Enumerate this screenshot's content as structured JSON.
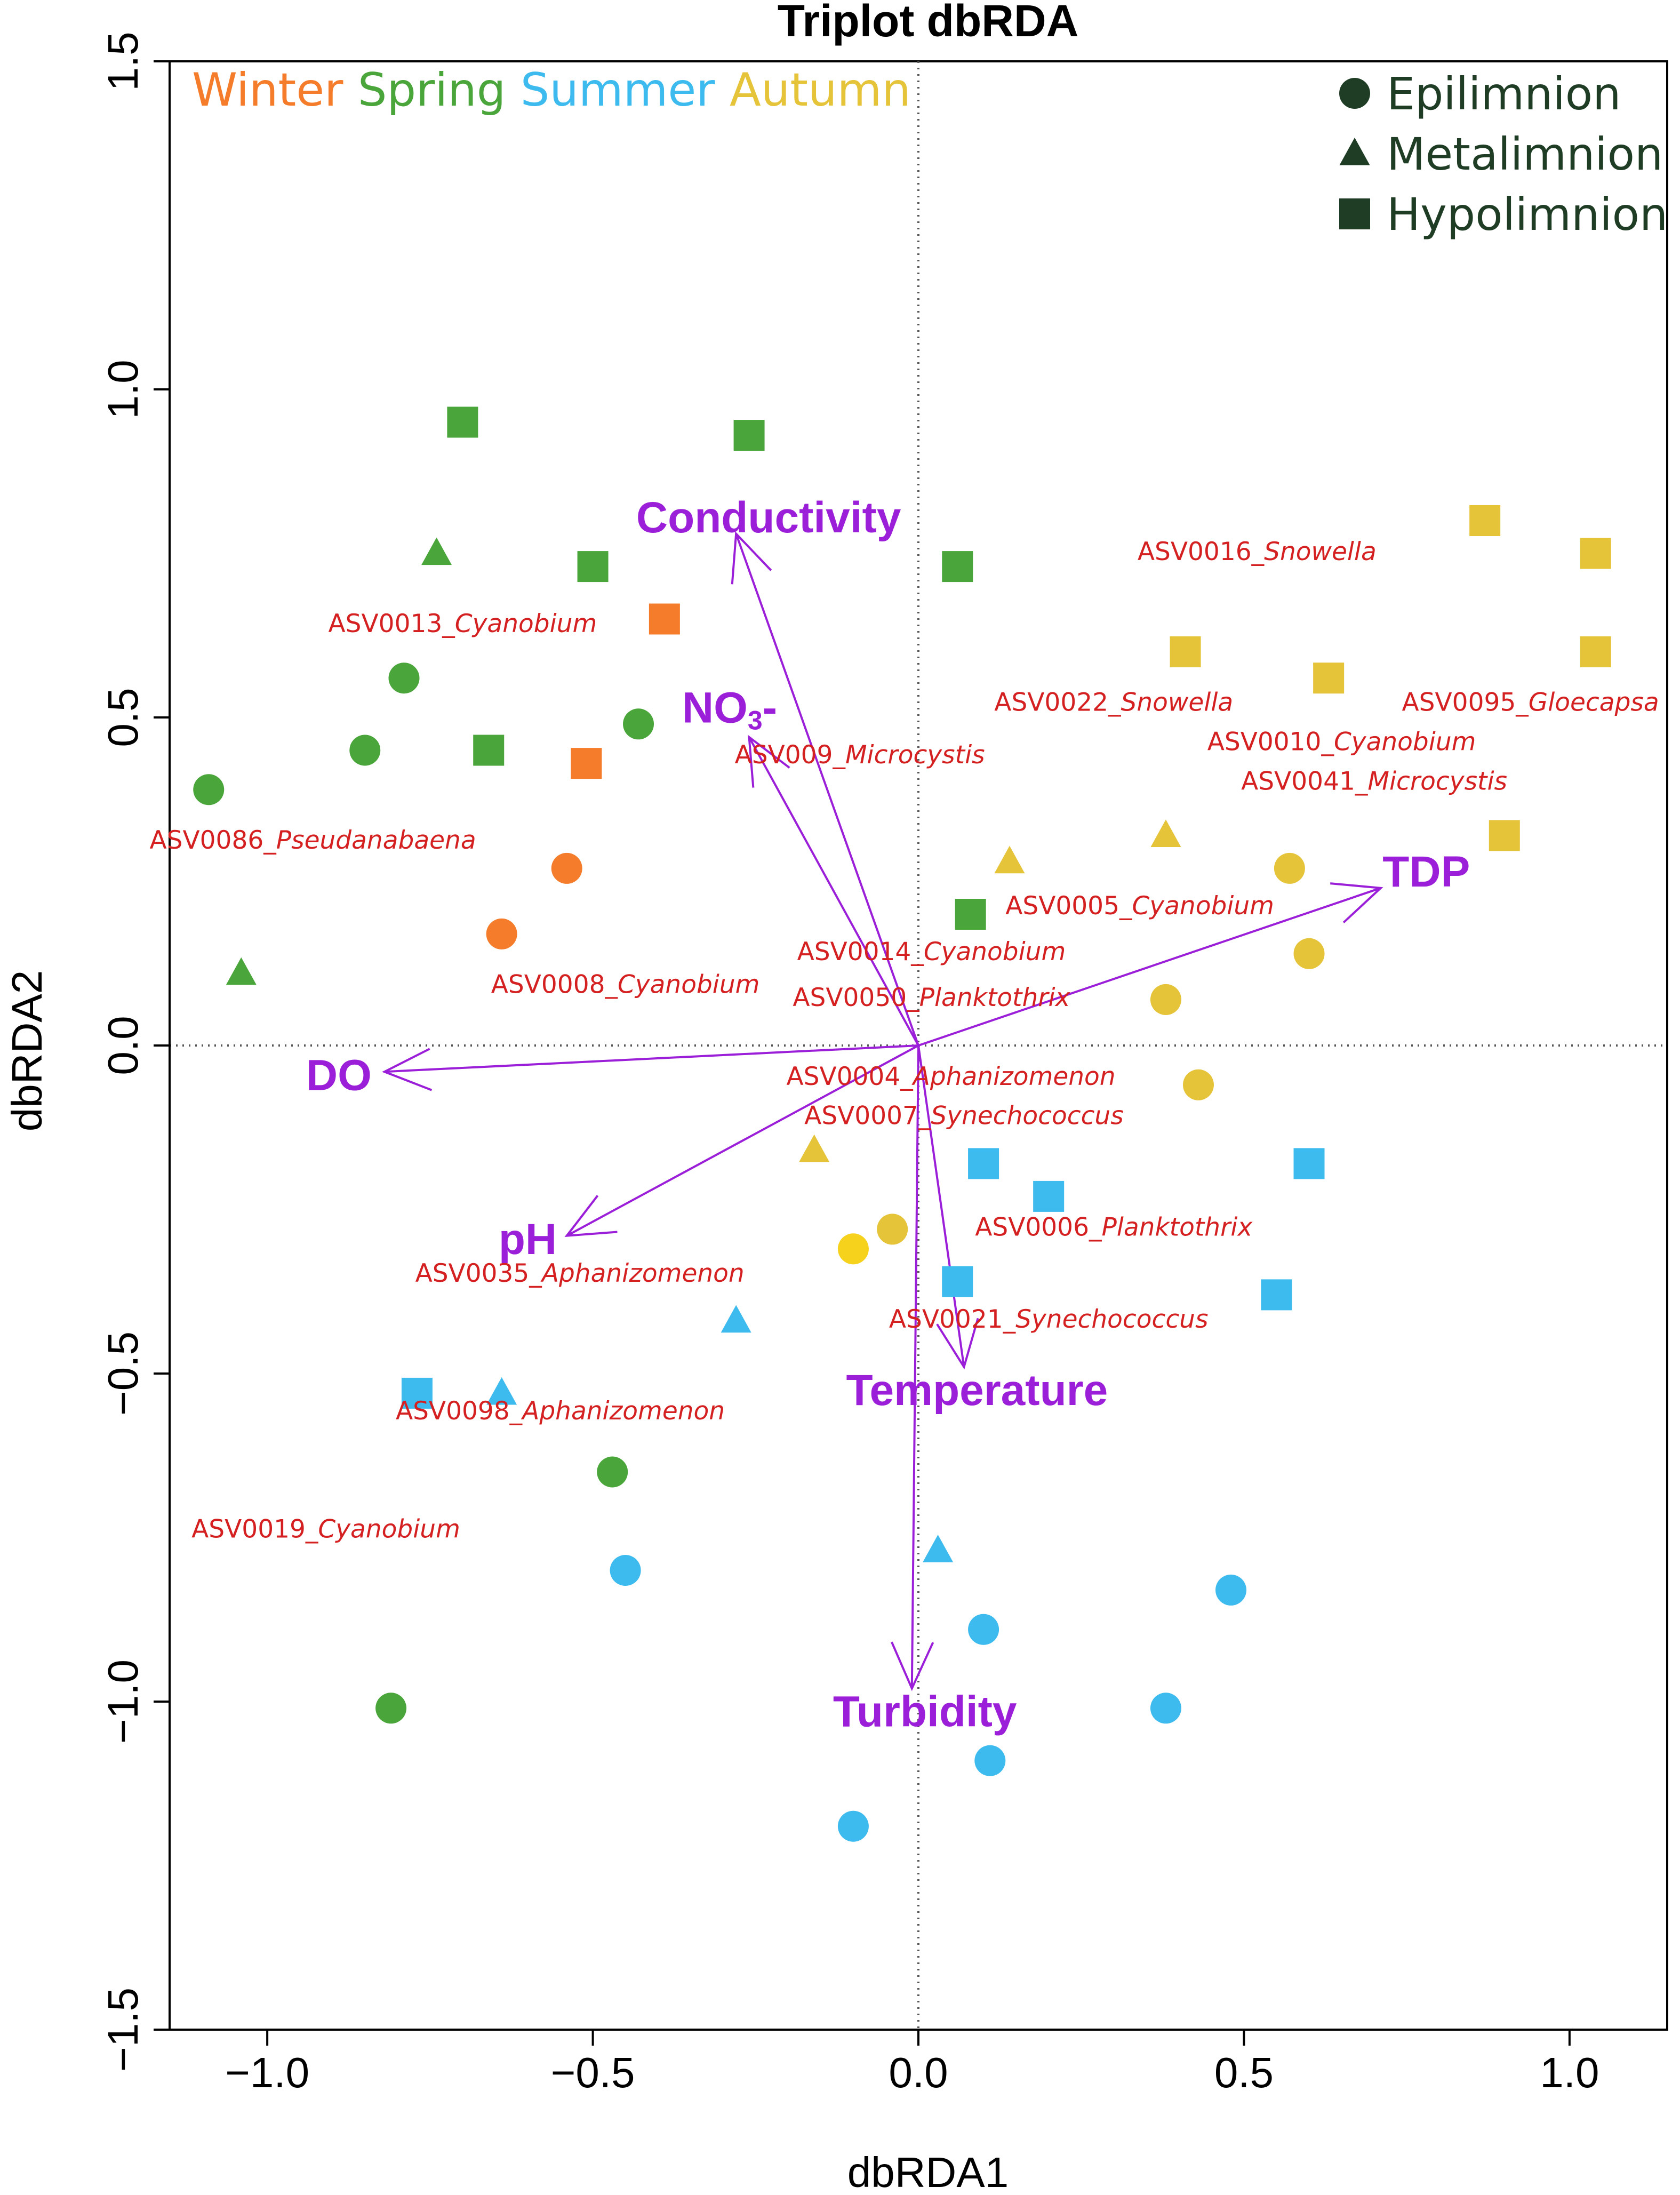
{
  "chart_data": {
    "type": "scatter",
    "title": "Triplot dbRDA",
    "xlabel": "dbRDA1",
    "ylabel": "dbRDA2",
    "xlim": [
      -1.15,
      1.15
    ],
    "ylim": [
      -1.5,
      1.5
    ],
    "x_ticks": [
      -1.0,
      -0.5,
      0.0,
      0.5,
      1.0
    ],
    "y_ticks": [
      -1.5,
      -1.0,
      -0.5,
      0.0,
      0.5,
      1.0,
      1.5
    ],
    "x_tick_labels": [
      "−1.0",
      "−0.5",
      "0.0",
      "0.5",
      "1.0"
    ],
    "y_tick_labels": [
      "−1.5",
      "−1.0",
      "−0.5",
      "0.0",
      "0.5",
      "1.0",
      "1.5"
    ],
    "reference_lines": {
      "x": 0,
      "y": 0,
      "style": "dotted"
    },
    "season_legend": [
      {
        "label": "Winter",
        "color": "#f47c2a"
      },
      {
        "label": "Spring",
        "color": "#4aa63a"
      },
      {
        "label": "Summer",
        "color": "#3dbbee"
      },
      {
        "label": "Autumn",
        "color": "#e5c43a"
      }
    ],
    "layer_legend": [
      {
        "label": "Epilimnion",
        "shape": "circle"
      },
      {
        "label": "Metalimnion",
        "shape": "triangle"
      },
      {
        "label": "Hypolimnion",
        "shape": "square"
      }
    ],
    "legend_color": "#1f3d25",
    "points": [
      {
        "season": "Spring",
        "layer": "Hypolimnion",
        "x": -0.7,
        "y": 0.95
      },
      {
        "season": "Spring",
        "layer": "Hypolimnion",
        "x": -0.26,
        "y": 0.93
      },
      {
        "season": "Spring",
        "layer": "Hypolimnion",
        "x": -0.5,
        "y": 0.73
      },
      {
        "season": "Spring",
        "layer": "Hypolimnion",
        "x": 0.06,
        "y": 0.73
      },
      {
        "season": "Spring",
        "layer": "Hypolimnion",
        "x": -0.66,
        "y": 0.45
      },
      {
        "season": "Spring",
        "layer": "Hypolimnion",
        "x": 0.08,
        "y": 0.2
      },
      {
        "season": "Spring",
        "layer": "Metalimnion",
        "x": -0.74,
        "y": 0.75
      },
      {
        "season": "Spring",
        "layer": "Metalimnion",
        "x": -1.04,
        "y": 0.11
      },
      {
        "season": "Spring",
        "layer": "Epilimnion",
        "x": -0.79,
        "y": 0.56
      },
      {
        "season": "Spring",
        "layer": "Epilimnion",
        "x": -0.43,
        "y": 0.49
      },
      {
        "season": "Spring",
        "layer": "Epilimnion",
        "x": -0.85,
        "y": 0.45
      },
      {
        "season": "Spring",
        "layer": "Epilimnion",
        "x": -1.09,
        "y": 0.39
      },
      {
        "season": "Spring",
        "layer": "Epilimnion",
        "x": -0.47,
        "y": -0.65
      },
      {
        "season": "Spring",
        "layer": "Epilimnion",
        "x": -0.81,
        "y": -1.01
      },
      {
        "season": "Winter",
        "layer": "Hypolimnion",
        "x": -0.39,
        "y": 0.65
      },
      {
        "season": "Winter",
        "layer": "Hypolimnion",
        "x": -0.51,
        "y": 0.43
      },
      {
        "season": "Winter",
        "layer": "Epilimnion",
        "x": -0.54,
        "y": 0.27
      },
      {
        "season": "Winter",
        "layer": "Epilimnion",
        "x": -0.64,
        "y": 0.17
      },
      {
        "season": "Autumn",
        "layer": "Hypolimnion",
        "x": 0.87,
        "y": 0.8
      },
      {
        "season": "Autumn",
        "layer": "Hypolimnion",
        "x": 1.04,
        "y": 0.75
      },
      {
        "season": "Autumn",
        "layer": "Hypolimnion",
        "x": 0.41,
        "y": 0.6
      },
      {
        "season": "Autumn",
        "layer": "Hypolimnion",
        "x": 1.04,
        "y": 0.6
      },
      {
        "season": "Autumn",
        "layer": "Hypolimnion",
        "x": 0.63,
        "y": 0.56
      },
      {
        "season": "Autumn",
        "layer": "Hypolimnion",
        "x": 0.9,
        "y": 0.32
      },
      {
        "season": "Autumn",
        "layer": "Metalimnion",
        "x": 0.38,
        "y": 0.32
      },
      {
        "season": "Autumn",
        "layer": "Metalimnion",
        "x": 0.14,
        "y": 0.28
      },
      {
        "season": "Autumn",
        "layer": "Metalimnion",
        "x": -0.16,
        "y": -0.16
      },
      {
        "season": "Autumn",
        "layer": "Epilimnion",
        "x": 0.57,
        "y": 0.27
      },
      {
        "season": "Autumn",
        "layer": "Epilimnion",
        "x": 0.6,
        "y": 0.14
      },
      {
        "season": "Autumn",
        "layer": "Epilimnion",
        "x": 0.38,
        "y": 0.07
      },
      {
        "season": "Autumn",
        "layer": "Epilimnion",
        "x": 0.43,
        "y": -0.06
      },
      {
        "season": "Autumn",
        "layer": "Epilimnion",
        "x": -0.04,
        "y": -0.28
      },
      {
        "season": "Autumn",
        "layer": "Epilimnion",
        "x": -0.1,
        "y": -0.31,
        "color": "#f7d21c"
      },
      {
        "season": "Summer",
        "layer": "Hypolimnion",
        "x": 0.1,
        "y": -0.18
      },
      {
        "season": "Summer",
        "layer": "Hypolimnion",
        "x": 0.6,
        "y": -0.18
      },
      {
        "season": "Summer",
        "layer": "Hypolimnion",
        "x": 0.2,
        "y": -0.23
      },
      {
        "season": "Summer",
        "layer": "Hypolimnion",
        "x": 0.06,
        "y": -0.36
      },
      {
        "season": "Summer",
        "layer": "Hypolimnion",
        "x": 0.55,
        "y": -0.38
      },
      {
        "season": "Summer",
        "layer": "Hypolimnion",
        "x": -0.77,
        "y": -0.53
      },
      {
        "season": "Summer",
        "layer": "Metalimnion",
        "x": -0.28,
        "y": -0.42
      },
      {
        "season": "Summer",
        "layer": "Metalimnion",
        "x": -0.64,
        "y": -0.53
      },
      {
        "season": "Summer",
        "layer": "Metalimnion",
        "x": 0.03,
        "y": -0.77
      },
      {
        "season": "Summer",
        "layer": "Epilimnion",
        "x": -0.45,
        "y": -0.8
      },
      {
        "season": "Summer",
        "layer": "Epilimnion",
        "x": 0.48,
        "y": -0.83
      },
      {
        "season": "Summer",
        "layer": "Epilimnion",
        "x": 0.1,
        "y": -0.89
      },
      {
        "season": "Summer",
        "layer": "Epilimnion",
        "x": 0.38,
        "y": -1.01
      },
      {
        "season": "Summer",
        "layer": "Epilimnion",
        "x": 0.11,
        "y": -1.09
      },
      {
        "season": "Summer",
        "layer": "Epilimnion",
        "x": -0.1,
        "y": -1.19
      }
    ],
    "vectors": [
      {
        "label": "Conductivity",
        "x": -0.28,
        "y": 0.78,
        "label_x": -0.23,
        "label_y": 0.8
      },
      {
        "label": "NO",
        "subscript": "3",
        "suffix": "-",
        "x": -0.26,
        "y": 0.47,
        "label_x": -0.29,
        "label_y": 0.51
      },
      {
        "label": "TDP",
        "x": 0.71,
        "y": 0.24,
        "label_x": 0.78,
        "label_y": 0.26
      },
      {
        "label": "DO",
        "x": -0.82,
        "y": -0.04,
        "label_x": -0.89,
        "label_y": -0.05
      },
      {
        "label": "pH",
        "x": -0.54,
        "y": -0.29,
        "label_x": -0.6,
        "label_y": -0.3
      },
      {
        "label": "Temperature",
        "x": 0.07,
        "y": -0.49,
        "label_x": 0.09,
        "label_y": -0.53
      },
      {
        "label": "Turbidity",
        "x": -0.01,
        "y": -0.98,
        "label_x": 0.01,
        "label_y": -1.02
      }
    ],
    "vector_color": "#9b1fd8",
    "species_color": "#d42020",
    "species": [
      {
        "code": "ASV0016_",
        "genus": "Snowella",
        "x": 0.52,
        "y": 0.74
      },
      {
        "code": "ASV0013_",
        "genus": "Cyanobium",
        "x": -0.7,
        "y": 0.63
      },
      {
        "code": "ASV0022_",
        "genus": "Snowella",
        "x": 0.3,
        "y": 0.51
      },
      {
        "code": "ASV0095_",
        "genus": "Gloecapsa",
        "x": 0.94,
        "y": 0.51
      },
      {
        "code": "ASV009_",
        "genus": "Microcystis",
        "x": -0.09,
        "y": 0.43
      },
      {
        "code": "ASV0010_",
        "genus": "Cyanobium",
        "x": 0.65,
        "y": 0.45
      },
      {
        "code": "ASV0041_",
        "genus": "Microcystis",
        "x": 0.7,
        "y": 0.39
      },
      {
        "code": "ASV0086_",
        "genus": "Pseudanabaena",
        "x": -0.93,
        "y": 0.3
      },
      {
        "code": "ASV0005_",
        "genus": "Cyanobium",
        "x": 0.34,
        "y": 0.2
      },
      {
        "code": "ASV0014_",
        "genus": "Cyanobium",
        "x": 0.02,
        "y": 0.13
      },
      {
        "code": "ASV0008_",
        "genus": "Cyanobium",
        "x": -0.45,
        "y": 0.08
      },
      {
        "code": "ASV0050_",
        "genus": "Planktothrix",
        "x": 0.02,
        "y": 0.06
      },
      {
        "code": "ASV0004_",
        "genus": "Aphanizomenon",
        "x": 0.05,
        "y": -0.06
      },
      {
        "code": "ASV0007_",
        "genus": "Synechococcus",
        "x": 0.07,
        "y": -0.12
      },
      {
        "code": "ASV0006_",
        "genus": "Planktothrix",
        "x": 0.3,
        "y": -0.29
      },
      {
        "code": "ASV0035_",
        "genus": "Aphanizomenon",
        "x": -0.52,
        "y": -0.36
      },
      {
        "code": "ASV0021_",
        "genus": "Synechococcus",
        "x": 0.2,
        "y": -0.43
      },
      {
        "code": "ASV0098_",
        "genus": "Aphanizomenon",
        "x": -0.55,
        "y": -0.57
      },
      {
        "code": "ASV0019_",
        "genus": "Cyanobium",
        "x": -0.91,
        "y": -0.75
      }
    ]
  }
}
